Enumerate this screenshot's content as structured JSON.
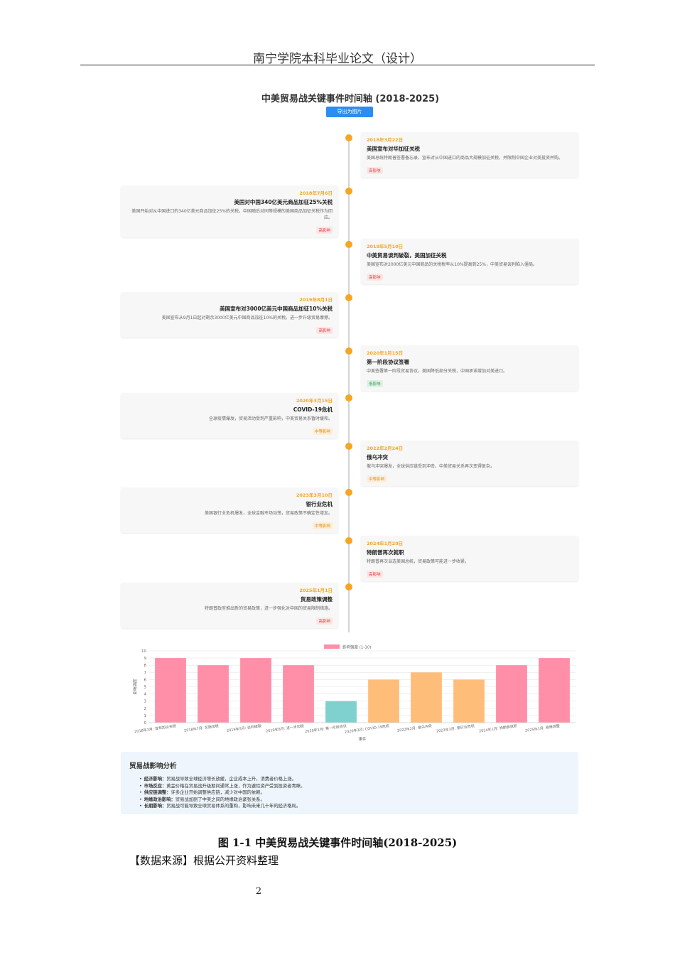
{
  "header": {
    "title": "南宁学院本科毕业论文（设计）"
  },
  "figure": {
    "title": "中美贸易战关键事件时间轴 (2018-2025)",
    "export_label": "导出为图片",
    "events": [
      {
        "date": "2018年3月22日",
        "title": "美国宣布对华加征关税",
        "desc": "美国总统特朗普签署备忘录，宣布对从中国进口的商品大规模加征关税，并限制中国企业对美投资并购。",
        "impact": "高影响",
        "level": "high"
      },
      {
        "date": "2018年7月6日",
        "title": "美国对中国340亿美元商品加征25%关税",
        "desc": "美国开始对从中国进口的340亿美元商品加征25%的关税，中国随后对同等规模的美国商品加征关税作为回应。",
        "impact": "高影响",
        "level": "high"
      },
      {
        "date": "2019年5月10日",
        "title": "中美贸易谈判破裂，美国加征关税",
        "desc": "美国宣布对2000亿美元中国商品的关税税率从10%提高到25%，中美贸易谈判陷入僵局。",
        "impact": "高影响",
        "level": "high"
      },
      {
        "date": "2019年8月1日",
        "title": "美国宣布对3000亿美元中国商品加征10%关税",
        "desc": "美国宣布从9月1日起对剩余3000亿美元中国商品加征10%的关税，进一步升级贸易摩擦。",
        "impact": "高影响",
        "level": "high"
      },
      {
        "date": "2020年1月15日",
        "title": "第一阶段协议签署",
        "desc": "中美签署第一阶段贸易协议，美国降低部分关税，中国承诺增加对美进口。",
        "impact": "低影响",
        "level": "low"
      },
      {
        "date": "2020年3月15日",
        "title": "COVID-19危机",
        "desc": "全球疫情爆发，贸易活动受到严重影响，中美贸易关系暂时缓和。",
        "impact": "中等影响",
        "level": "mid"
      },
      {
        "date": "2022年2月24日",
        "title": "俄乌冲突",
        "desc": "俄乌冲突爆发，全球供应链受到冲击，中美贸易关系再次变得复杂。",
        "impact": "中等影响",
        "level": "mid"
      },
      {
        "date": "2023年3月10日",
        "title": "银行业危机",
        "desc": "美国银行业危机爆发，全球金融市场动荡，贸易政策不确定性增加。",
        "impact": "中等影响",
        "level": "mid"
      },
      {
        "date": "2024年1月20日",
        "title": "特朗普再次就职",
        "desc": "特朗普再次当选美国总统，贸易政策可能进一步收紧。",
        "impact": "高影响",
        "level": "high"
      },
      {
        "date": "2025年1月1日",
        "title": "贸易政策调整",
        "desc": "特朗普政府推出新的贸易政策，进一步强化对中国的贸易限制措施。",
        "impact": "高影响",
        "level": "high"
      }
    ]
  },
  "chart_data": {
    "type": "bar",
    "categories": [
      "2018年3月: 宣布加征关税",
      "2018年7月: 实施加税",
      "2019年5月: 谈判破裂",
      "2019年8月: 进一步加税",
      "2020年1月: 第一阶段协议",
      "2020年3月: COVID-19危机",
      "2022年2月: 俄乌冲突",
      "2023年3月: 银行业危机",
      "2024年1月: 特朗普就职",
      "2025年1月: 政策调整"
    ],
    "series": [
      {
        "name": "影响强度 (1-10)",
        "values": [
          9,
          8,
          9,
          8,
          3,
          6,
          7,
          6,
          8,
          9
        ]
      }
    ],
    "bar_colors": [
      "#ff8fa8",
      "#ff8fa8",
      "#ff8fa8",
      "#ff8fa8",
      "#7fd1cf",
      "#ffbd7a",
      "#ffbd7a",
      "#ffbd7a",
      "#ff8fa8",
      "#ff8fa8"
    ],
    "xlabel": "事件",
    "ylabel": "影响强度",
    "ylim": [
      0,
      10
    ],
    "yticks": [
      "0",
      "1",
      "2",
      "3",
      "4",
      "5",
      "6",
      "7",
      "8",
      "9",
      "10"
    ],
    "legend": "top-center",
    "grid": true
  },
  "analysis": {
    "title": "贸易战影响分析",
    "items": [
      {
        "label": "经济影响：",
        "text": "贸易战导致全球经济增长放缓，企业成本上升，消费者价格上涨。"
      },
      {
        "label": "市场反应：",
        "text": "黄金价格在贸易战升级期间通常上涨，作为避险资产受到投资者青睐。"
      },
      {
        "label": "供应链调整：",
        "text": "许多企业开始调整供应链，减少对中国的依赖。"
      },
      {
        "label": "地缘政治影响：",
        "text": "贸易战加剧了中美之间的地缘政治紧张关系。"
      },
      {
        "label": "长期影响：",
        "text": "贸易战可能导致全球贸易体系的重构，影响未来几十年的经济格局。"
      }
    ]
  },
  "caption": "图 1-1  中美贸易战关键事件时间轴(2018-2025)",
  "source": "【数据来源】根据公开资料整理",
  "page_number": "2"
}
